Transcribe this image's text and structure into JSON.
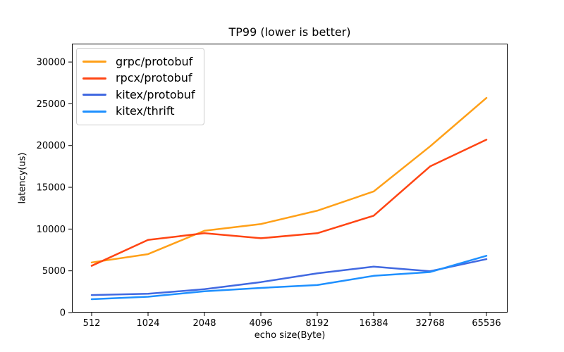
{
  "chart_data": {
    "type": "line",
    "title": "TP99 (lower is better)",
    "xlabel": "echo size(Byte)",
    "ylabel": "latency(us)",
    "categories": [
      "512",
      "1024",
      "2048",
      "4096",
      "8192",
      "16384",
      "32768",
      "65536"
    ],
    "y_ticks": [
      0,
      5000,
      10000,
      15000,
      20000,
      25000,
      30000
    ],
    "ylim": [
      0,
      32200
    ],
    "grid": false,
    "legend_position": "upper-left",
    "axis_color": "#000000",
    "background_color": "#ffffff",
    "series": [
      {
        "name": "grpc/protobuf",
        "color": "#FFA018",
        "values": [
          6000,
          7000,
          9800,
          10600,
          12200,
          14500,
          19900,
          25700
        ]
      },
      {
        "name": "rpcx/protobuf",
        "color": "#FF4513",
        "values": [
          5600,
          8700,
          9500,
          8900,
          9500,
          11600,
          17500,
          20700
        ]
      },
      {
        "name": "kitex/protobuf",
        "color": "#4169E1",
        "values": [
          2100,
          2250,
          2800,
          3650,
          4700,
          5500,
          4950,
          6400
        ]
      },
      {
        "name": "kitex/thrift",
        "color": "#1E90FF",
        "values": [
          1600,
          1900,
          2550,
          2950,
          3300,
          4400,
          4850,
          6800
        ]
      }
    ]
  }
}
